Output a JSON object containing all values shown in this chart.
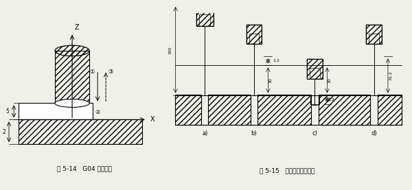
{
  "bg_color": "#f0f0eb",
  "fig14_caption": "图 5-14   G04 编程举例",
  "fig15_caption": "图 5-15   刀具长度补偿示例",
  "fig14_dim1": "5",
  "fig14_dim2": "2",
  "fig14_arrows": [
    "①",
    "②",
    "③"
  ],
  "fig15_dims": [
    "195",
    "1.2",
    "30",
    "30",
    "1.2",
    "31.2"
  ],
  "fig15_subs": [
    "a)",
    "b)",
    "c)",
    "d)"
  ]
}
